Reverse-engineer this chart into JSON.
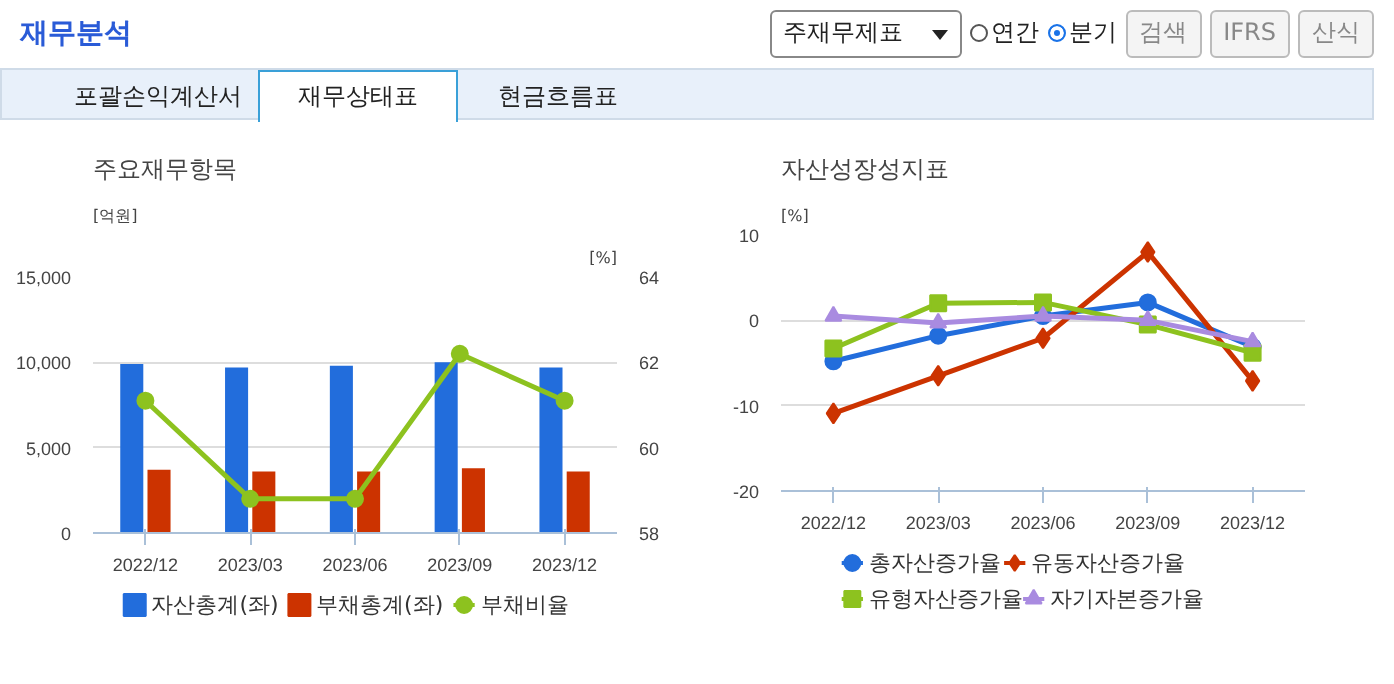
{
  "chart_data": [
    {
      "type": "other",
      "title": "재무분석",
      "annotations": [
        "주재무제표",
        "연간",
        "분기",
        "검색",
        "IFRS",
        "산식",
        "포괄손익계산서",
        "재무상태표",
        "현금흐름표"
      ]
    },
    {
      "type": "bar",
      "title": "주요재무항목",
      "ylabel": "[억원]",
      "y2label": "[%]",
      "categories": [
        "2022/12",
        "2023/03",
        "2023/06",
        "2023/09",
        "2023/12"
      ],
      "ylim": [
        0,
        15000
      ],
      "yticks": [
        {
          "value": 0,
          "label": "0"
        },
        {
          "value": 5000,
          "label": "5,000"
        },
        {
          "value": 10000,
          "label": "10,000"
        },
        {
          "value": 15000,
          "label": "15,000"
        }
      ],
      "y2lim": [
        58,
        64
      ],
      "y2ticks": [
        58,
        60,
        62,
        64
      ],
      "grid": "y",
      "legend": "bottom",
      "series": [
        {
          "name": "자산총계(좌)",
          "color": "#226ddc",
          "values": [
            9900,
            9700,
            9800,
            10000,
            9700
          ]
        },
        {
          "name": "부채총계(좌)",
          "color": "#cc3300",
          "values": [
            3700,
            3600,
            3600,
            3800,
            3600
          ]
        },
        {
          "name": "부채비율",
          "type": "line",
          "axis": "y2",
          "marker": "circle",
          "color": "#8dc21f",
          "values": [
            61.1,
            58.8,
            58.8,
            62.2,
            61.1
          ]
        }
      ]
    },
    {
      "type": "line",
      "title": "자산성장성지표",
      "ylabel": "[%]",
      "categories": [
        "2022/12",
        "2023/03",
        "2023/06",
        "2023/09",
        "2023/12"
      ],
      "ylim": [
        -20,
        10
      ],
      "yticks": [
        -20,
        -10,
        0,
        10
      ],
      "grid": "y",
      "legend": "bottom",
      "series": [
        {
          "name": "총자산증가율",
          "color": "#226ddc",
          "marker": "circle",
          "values": [
            -4.8,
            -1.8,
            0.5,
            2.1,
            -3.1
          ]
        },
        {
          "name": "유동자산증가율",
          "color": "#cc3300",
          "marker": "diamond",
          "values": [
            -10.9,
            -6.5,
            -2.1,
            8.0,
            -7.1
          ]
        },
        {
          "name": "유형자산증가율",
          "color": "#8dc21f",
          "marker": "square",
          "values": [
            -3.3,
            2.0,
            2.1,
            -0.5,
            -3.8
          ]
        },
        {
          "name": "자기자본증가율",
          "color": "#a98be0",
          "marker": "triangle",
          "values": [
            0.5,
            -0.3,
            0.5,
            0.0,
            -2.5
          ]
        }
      ]
    }
  ]
}
